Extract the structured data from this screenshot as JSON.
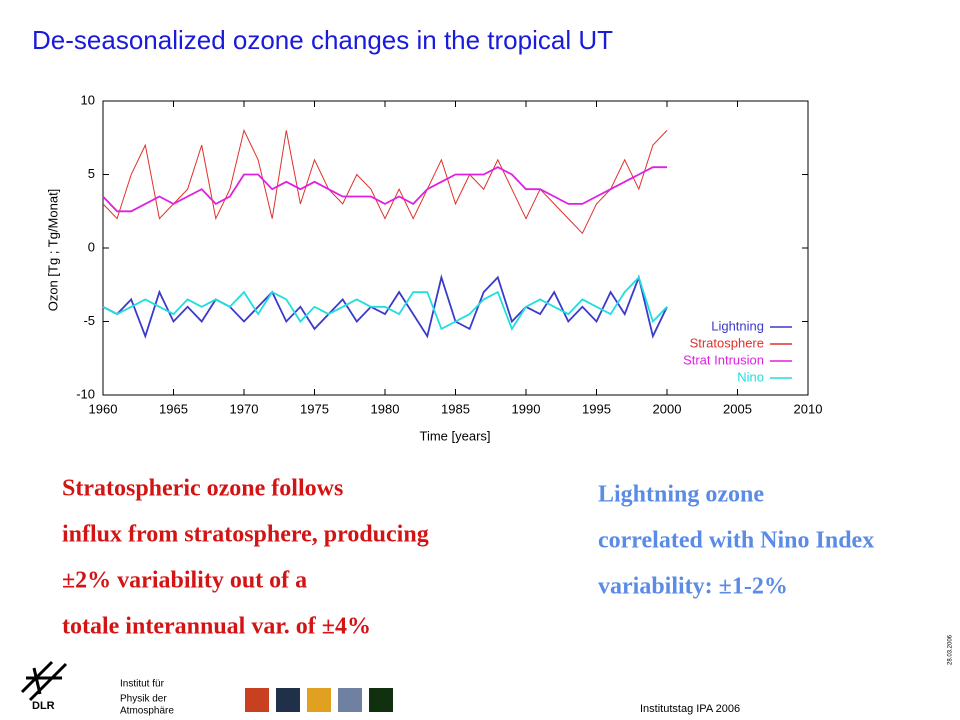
{
  "title": "De-seasonalized ozone changes in the tropical UT",
  "chart_data": {
    "type": "line",
    "xlabel": "Time [years]",
    "ylabel": "Ozon [Tg ; Tg/Monat]",
    "x": [
      1960,
      1961,
      1962,
      1963,
      1964,
      1965,
      1966,
      1967,
      1968,
      1969,
      1970,
      1971,
      1972,
      1973,
      1974,
      1975,
      1976,
      1977,
      1978,
      1979,
      1980,
      1981,
      1982,
      1983,
      1984,
      1985,
      1986,
      1987,
      1988,
      1989,
      1990,
      1991,
      1992,
      1993,
      1994,
      1995,
      1996,
      1997,
      1998,
      1999,
      2000
    ],
    "series": [
      {
        "name": "Lightning",
        "color": "#3a3acc",
        "values": [
          -4,
          -4.5,
          -3.5,
          -6,
          -3,
          -5,
          -4,
          -5,
          -3.5,
          -4,
          -5,
          -4,
          -3,
          -5,
          -4,
          -5.5,
          -4.5,
          -3.5,
          -5,
          -4,
          -4.5,
          -3,
          -4.5,
          -6,
          -2,
          -5,
          -5.5,
          -3,
          -2,
          -5,
          -4,
          -4.5,
          -3,
          -5,
          -4,
          -5,
          -3,
          -4.5,
          -2,
          -6,
          -4
        ]
      },
      {
        "name": "Stratosphere",
        "color": "#e0302a",
        "values": [
          3,
          2,
          5,
          7,
          2,
          3,
          4,
          7,
          2,
          4,
          8,
          6,
          2,
          8,
          3,
          6,
          4,
          3,
          5,
          4,
          2,
          4,
          2,
          4,
          6,
          3,
          5,
          4,
          6,
          4,
          2,
          4,
          3,
          2,
          1,
          3,
          4,
          6,
          4,
          7,
          8
        ]
      },
      {
        "name": "Strat Intrusion",
        "color": "#e020e0",
        "values": [
          3.5,
          2.5,
          2.5,
          3,
          3.5,
          3,
          3.5,
          4,
          3,
          3.5,
          5,
          5,
          4,
          4.5,
          4,
          4.5,
          4,
          3.5,
          3.5,
          3.5,
          3,
          3.5,
          3,
          4,
          4.5,
          5,
          5,
          5,
          5.5,
          5,
          4,
          4,
          3.5,
          3,
          3,
          3.5,
          4,
          4.5,
          5,
          5.5,
          5.5
        ]
      },
      {
        "name": "Nino",
        "color": "#20dede",
        "values": [
          -4,
          -4.5,
          -4,
          -3.5,
          -4,
          -4.5,
          -3.5,
          -4,
          -3.5,
          -4,
          -3,
          -4.5,
          -3,
          -3.5,
          -5,
          -4,
          -4.5,
          -4,
          -3.5,
          -4,
          -4,
          -4.5,
          -3,
          -3,
          -5.5,
          -5,
          -4.5,
          -3.5,
          -3,
          -5.5,
          -4,
          -3.5,
          -4,
          -4.5,
          -3.5,
          -4,
          -4.5,
          -3,
          -2,
          -5,
          -4
        ]
      }
    ],
    "xlim": [
      1960,
      2010
    ],
    "xticks": [
      1960,
      1965,
      1970,
      1975,
      1980,
      1985,
      1990,
      1995,
      2000,
      2005,
      2010
    ],
    "ylim": [
      -10,
      10
    ],
    "yticks": [
      -10,
      -5,
      0,
      5,
      10
    ],
    "legend": "lower right"
  },
  "left_text": [
    "Stratospheric ozone follows",
    "influx from stratosphere, producing",
    "±2% variability out of a",
    "totale interannual var. of ±4%"
  ],
  "right_text": [
    "Lightning ozone",
    "correlated with Nino Index",
    "variability: ±1-2%"
  ],
  "footer": {
    "logo": "DLR",
    "institute": [
      "Institut für",
      "Physik der",
      "Atmosphäre"
    ],
    "event": "Institutstag IPA 2006",
    "date": "28.03.2006"
  }
}
